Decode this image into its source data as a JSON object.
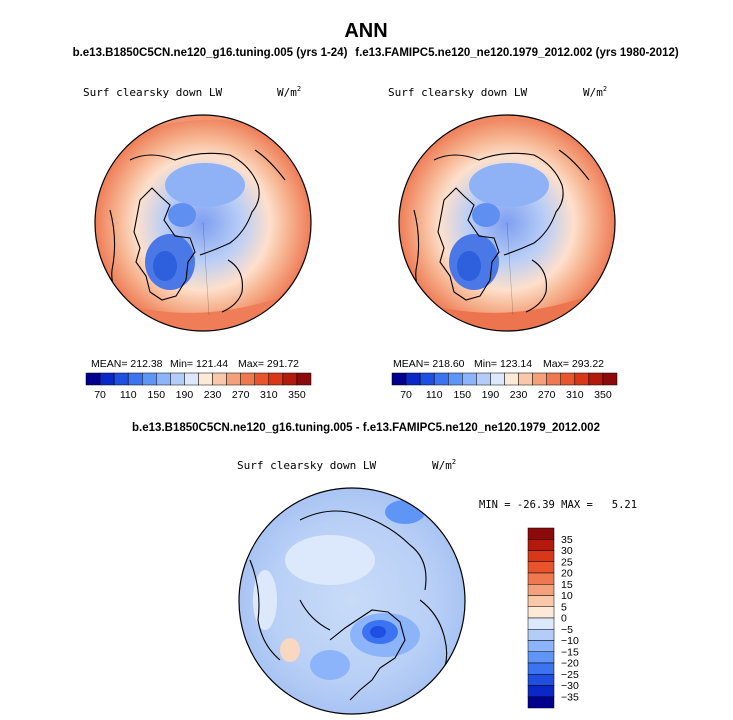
{
  "figure": {
    "title": "ANN",
    "case1_label": "b.e13.B1850C5CN.ne120_g16.tuning.005 (yrs 1-24)",
    "case2_label": "f.e13.FAMIPC5.ne120_ne120.1979_2012.002 (yrs 1980-2012)",
    "diff_label": "b.e13.B1850C5CN.ne120_g16.tuning.005 - f.e13.FAMIPC5.ne120_ne120.1979_2012.002"
  },
  "chart_data": [
    {
      "type": "heatmap",
      "projection": "polar-stereographic-north",
      "variable": "Surf clearsky down LW",
      "units": "W/m",
      "units_sup": "2",
      "stats": {
        "mean_text": "MEAN= 212.38",
        "min_text": "Min= 121.44",
        "max_text": "Max= 291.72",
        "mean": 212.38,
        "min": 121.44,
        "max": 291.72
      },
      "colorbar": {
        "orientation": "horizontal",
        "tick_labels": [
          "70",
          "110",
          "150",
          "190",
          "230",
          "270",
          "310",
          "350"
        ],
        "colors": [
          "#00008c",
          "#0a28c8",
          "#1e4fe0",
          "#3c73f0",
          "#5f95f5",
          "#8cb4fa",
          "#b4cdf8",
          "#dce8fb",
          "#fde9d8",
          "#f8c8a8",
          "#f4a07a",
          "#f07850",
          "#e8552d",
          "#d83818",
          "#b41a0c",
          "#8c0a0a"
        ]
      }
    },
    {
      "type": "heatmap",
      "projection": "polar-stereographic-north",
      "variable": "Surf clearsky down LW",
      "units": "W/m",
      "units_sup": "2",
      "stats": {
        "mean_text": "MEAN= 218.60",
        "min_text": "Min= 123.14",
        "max_text": "Max= 293.22",
        "mean": 218.6,
        "min": 123.14,
        "max": 293.22
      },
      "colorbar": {
        "orientation": "horizontal",
        "tick_labels": [
          "70",
          "110",
          "150",
          "190",
          "230",
          "270",
          "310",
          "350"
        ],
        "colors": [
          "#00008c",
          "#0a28c8",
          "#1e4fe0",
          "#3c73f0",
          "#5f95f5",
          "#8cb4fa",
          "#b4cdf8",
          "#dce8fb",
          "#fde9d8",
          "#f8c8a8",
          "#f4a07a",
          "#f07850",
          "#e8552d",
          "#d83818",
          "#b41a0c",
          "#8c0a0a"
        ]
      }
    },
    {
      "type": "heatmap",
      "projection": "polar-stereographic-north",
      "variable": "Surf clearsky down LW",
      "units": "W/m",
      "units_sup": "2",
      "stats": {
        "minmax_text": "MIN = -26.39 MAX =   5.21",
        "min": -26.39,
        "max": 5.21
      },
      "colorbar": {
        "orientation": "vertical",
        "tick_labels": [
          "35",
          "30",
          "25",
          "20",
          "15",
          "10",
          "5",
          "0",
          "−5",
          "−10",
          "−15",
          "−20",
          "−25",
          "−30",
          "−35"
        ],
        "colors": [
          "#8c0a0a",
          "#b41a0c",
          "#d83818",
          "#e8552d",
          "#f07850",
          "#f4a07a",
          "#f8c8a8",
          "#fde9d8",
          "#dce8fb",
          "#b4cdf8",
          "#8cb4fa",
          "#5f95f5",
          "#3c73f0",
          "#1e4fe0",
          "#0a28c8",
          "#00008c"
        ]
      }
    }
  ]
}
